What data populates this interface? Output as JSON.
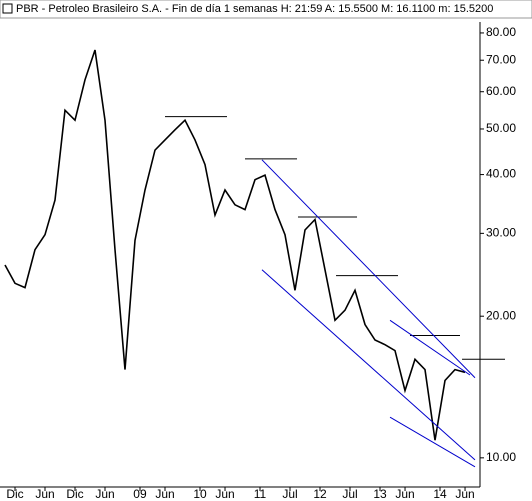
{
  "chart_data": {
    "type": "line",
    "title": "PBR - Petroleo Brasileiro S.A. - Fin de día 1 semanas  H: 21:59  A: 15.5500  M: 16.1100  m: 15.5200",
    "log_y": true,
    "color": "#000000",
    "x": [
      2006.75,
      2006.917,
      2007.083,
      2007.25,
      2007.417,
      2007.583,
      2007.75,
      2007.917,
      2008.083,
      2008.25,
      2008.417,
      2008.583,
      2008.75,
      2008.917,
      2009.083,
      2009.25,
      2009.417,
      2009.583,
      2009.75,
      2009.917,
      2010.083,
      2010.25,
      2010.417,
      2010.583,
      2010.75,
      2010.917,
      2011.083,
      2011.25,
      2011.417,
      2011.583,
      2011.75,
      2011.917,
      2012.083,
      2012.25,
      2012.417,
      2012.583,
      2012.75,
      2012.917,
      2013.083,
      2013.25,
      2013.417,
      2013.583,
      2013.75,
      2013.917,
      2014.083,
      2014.25,
      2014.417
    ],
    "values": [
      25.7,
      23.5,
      23.0,
      27.7,
      29.8,
      35.3,
      54.8,
      52.2,
      63.6,
      73.6,
      52.2,
      27.7,
      15.4,
      29.0,
      37.1,
      45.1,
      47.4,
      49.8,
      52.2,
      47.4,
      42.0,
      32.8,
      37.1,
      34.5,
      33.7,
      39.0,
      39.9,
      33.7,
      29.8,
      22.7,
      30.5,
      32.1,
      25.1,
      19.6,
      20.6,
      22.7,
      19.2,
      17.8,
      17.4,
      16.9,
      13.9,
      16.2,
      15.4,
      10.9,
      14.6,
      15.4,
      15.2
    ],
    "xlim": [
      2006.667,
      2015.333
    ],
    "ylim": [
      8.67,
      84.4
    ],
    "yticks": [
      {
        "value": 10,
        "label": "10.00"
      },
      {
        "value": 20,
        "label": "20.00"
      },
      {
        "value": 30,
        "label": "30.00"
      },
      {
        "value": 40,
        "label": "40.00"
      },
      {
        "value": 50,
        "label": "50.00"
      },
      {
        "value": 60,
        "label": "60.00"
      },
      {
        "value": 70,
        "label": "70.00"
      },
      {
        "value": 80,
        "label": "80.00"
      }
    ],
    "xticks": [
      {
        "value": 2006.917,
        "label": "Dic"
      },
      {
        "value": 2007.417,
        "label": "Jun"
      },
      {
        "value": 2007.917,
        "label": "Dic"
      },
      {
        "value": 2008.417,
        "label": "Jun"
      },
      {
        "value": 2009.0,
        "label": "09"
      },
      {
        "value": 2009.417,
        "label": "Jun"
      },
      {
        "value": 2010.0,
        "label": "10"
      },
      {
        "value": 2010.417,
        "label": "Jun"
      },
      {
        "value": 2011.0,
        "label": "11"
      },
      {
        "value": 2011.5,
        "label": "Jul"
      },
      {
        "value": 2012.0,
        "label": "12"
      },
      {
        "value": 2012.5,
        "label": "Jul"
      },
      {
        "value": 2013.0,
        "label": "13"
      },
      {
        "value": 2013.417,
        "label": "Jun"
      },
      {
        "value": 2014.0,
        "label": "14"
      },
      {
        "value": 2014.417,
        "label": "Jun"
      }
    ],
    "trendlines": [
      {
        "color": "#000000",
        "x": [
          2009.417,
          2010.45
        ],
        "y": [
          53.1,
          53.1
        ]
      },
      {
        "color": "#000000",
        "x": [
          2010.75,
          2011.617
        ],
        "y": [
          43.2,
          43.2
        ]
      },
      {
        "color": "#000000",
        "x": [
          2011.633,
          2012.617
        ],
        "y": [
          32.5,
          32.5
        ]
      },
      {
        "color": "#000000",
        "x": [
          2012.267,
          2013.3
        ],
        "y": [
          24.4,
          24.4
        ]
      },
      {
        "color": "#000000",
        "x": [
          2013.5,
          2014.333
        ],
        "y": [
          18.2,
          18.2
        ]
      },
      {
        "color": "#000000",
        "x": [
          2014.367,
          2015.083
        ],
        "y": [
          16.2,
          16.2
        ]
      },
      {
        "color": "#0000cc",
        "x": [
          2011.033,
          2014.583
        ],
        "y": [
          43.0,
          14.8
        ]
      },
      {
        "color": "#0000cc",
        "x": [
          2011.033,
          2014.583
        ],
        "y": [
          25.1,
          9.9
        ]
      },
      {
        "color": "#0000cc",
        "x": [
          2013.167,
          2014.5
        ],
        "y": [
          19.6,
          15.0
        ]
      },
      {
        "color": "#0000cc",
        "x": [
          2013.167,
          2014.583
        ],
        "y": [
          12.2,
          9.57
        ]
      }
    ]
  }
}
